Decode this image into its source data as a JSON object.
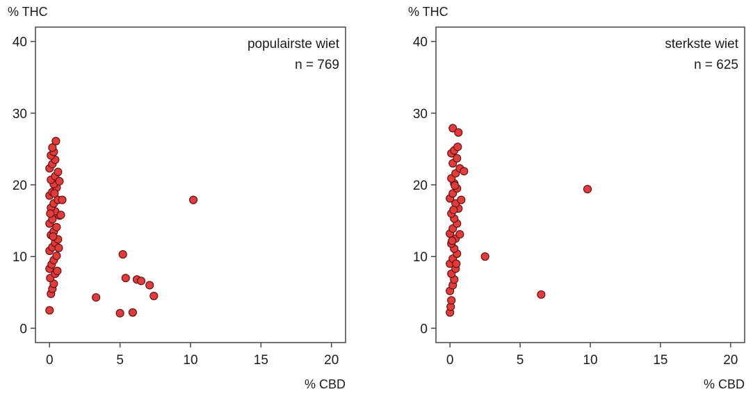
{
  "chart_data": [
    {
      "type": "scatter",
      "ylabel": "% THC",
      "xlabel": "% CBD",
      "xlim": [
        -1,
        21
      ],
      "ylim": [
        -2,
        42
      ],
      "x_ticks": [
        "0",
        "5",
        "10",
        "15",
        "20"
      ],
      "x_tick_values": [
        0,
        5,
        10,
        15,
        20
      ],
      "y_ticks": [
        "0",
        "10",
        "20",
        "30",
        "40"
      ],
      "y_tick_values": [
        0,
        10,
        20,
        30,
        40
      ],
      "annotation_lines": [
        "populairste wiet",
        "n = 769"
      ],
      "annotation_position": "top-right",
      "grid": false,
      "marker_color": "#e23b3b",
      "points": [
        [
          0.0,
          2.5
        ],
        [
          0.1,
          4.8
        ],
        [
          0.2,
          5.5
        ],
        [
          0.3,
          6.2
        ],
        [
          0.05,
          7.0
        ],
        [
          0.4,
          7.6
        ],
        [
          0.0,
          8.3
        ],
        [
          0.15,
          8.9
        ],
        [
          0.3,
          9.5
        ],
        [
          0.5,
          10.1
        ],
        [
          0.0,
          10.8
        ],
        [
          0.2,
          11.3
        ],
        [
          0.4,
          11.9
        ],
        [
          0.6,
          12.4
        ],
        [
          0.1,
          13.0
        ],
        [
          0.3,
          13.5
        ],
        [
          0.5,
          14.1
        ],
        [
          0.0,
          14.6
        ],
        [
          0.2,
          15.2
        ],
        [
          0.7,
          15.7
        ],
        [
          0.4,
          16.3
        ],
        [
          0.1,
          16.8
        ],
        [
          0.3,
          17.4
        ],
        [
          0.6,
          17.9
        ],
        [
          0.0,
          18.5
        ],
        [
          0.2,
          19.0
        ],
        [
          0.5,
          19.6
        ],
        [
          0.3,
          20.1
        ],
        [
          0.1,
          20.7
        ],
        [
          0.4,
          21.2
        ],
        [
          0.6,
          21.8
        ],
        [
          0.0,
          22.3
        ],
        [
          0.2,
          22.9
        ],
        [
          0.4,
          23.5
        ],
        [
          0.1,
          24.1
        ],
        [
          0.3,
          24.6
        ],
        [
          0.2,
          25.2
        ],
        [
          0.45,
          26.1
        ],
        [
          0.9,
          17.9
        ],
        [
          0.8,
          15.8
        ],
        [
          0.7,
          20.5
        ],
        [
          0.65,
          11.2
        ],
        [
          0.55,
          8.0
        ],
        [
          0.25,
          12.8
        ],
        [
          0.35,
          18.8
        ],
        [
          0.05,
          16.0
        ],
        [
          3.3,
          4.3
        ],
        [
          5.0,
          2.1
        ],
        [
          5.2,
          10.3
        ],
        [
          5.4,
          7.0
        ],
        [
          5.9,
          2.2
        ],
        [
          6.2,
          6.8
        ],
        [
          6.5,
          6.6
        ],
        [
          7.1,
          6.0
        ],
        [
          7.4,
          4.5
        ],
        [
          10.2,
          17.9
        ]
      ]
    },
    {
      "type": "scatter",
      "ylabel": "% THC",
      "xlabel": "% CBD",
      "xlim": [
        -1,
        21
      ],
      "ylim": [
        -2,
        42
      ],
      "x_ticks": [
        "0",
        "5",
        "10",
        "15",
        "20"
      ],
      "x_tick_values": [
        0,
        5,
        10,
        15,
        20
      ],
      "y_ticks": [
        "0",
        "10",
        "20",
        "30",
        "40"
      ],
      "y_tick_values": [
        0,
        10,
        20,
        30,
        40
      ],
      "annotation_lines": [
        "sterkste wiet",
        "n = 625"
      ],
      "annotation_position": "top-right",
      "grid": false,
      "marker_color": "#e23b3b",
      "points": [
        [
          0.0,
          2.2
        ],
        [
          0.05,
          3.0
        ],
        [
          0.1,
          3.9
        ],
        [
          0.0,
          5.2
        ],
        [
          0.2,
          6.0
        ],
        [
          0.3,
          6.8
        ],
        [
          0.1,
          7.6
        ],
        [
          0.4,
          8.3
        ],
        [
          0.0,
          9.0
        ],
        [
          0.2,
          9.7
        ],
        [
          0.5,
          10.4
        ],
        [
          0.3,
          11.1
        ],
        [
          0.1,
          11.8
        ],
        [
          0.4,
          12.5
        ],
        [
          0.0,
          13.2
        ],
        [
          0.2,
          13.9
        ],
        [
          0.5,
          14.6
        ],
        [
          0.3,
          15.3
        ],
        [
          0.1,
          16.0
        ],
        [
          0.6,
          16.7
        ],
        [
          0.4,
          17.4
        ],
        [
          0.0,
          18.1
        ],
        [
          0.2,
          18.8
        ],
        [
          0.5,
          19.5
        ],
        [
          0.3,
          20.2
        ],
        [
          0.1,
          20.9
        ],
        [
          0.4,
          21.6
        ],
        [
          0.7,
          22.3
        ],
        [
          0.2,
          23.0
        ],
        [
          0.5,
          23.7
        ],
        [
          0.1,
          24.4
        ],
        [
          0.3,
          24.8
        ],
        [
          0.55,
          25.3
        ],
        [
          0.2,
          27.9
        ],
        [
          0.6,
          27.3
        ],
        [
          1.0,
          21.9
        ],
        [
          0.8,
          17.9
        ],
        [
          0.7,
          13.1
        ],
        [
          0.45,
          9.0
        ],
        [
          0.25,
          16.5
        ],
        [
          0.35,
          19.9
        ],
        [
          0.15,
          12.2
        ],
        [
          2.5,
          10.0
        ],
        [
          6.5,
          4.7
        ],
        [
          9.8,
          19.4
        ]
      ]
    }
  ]
}
